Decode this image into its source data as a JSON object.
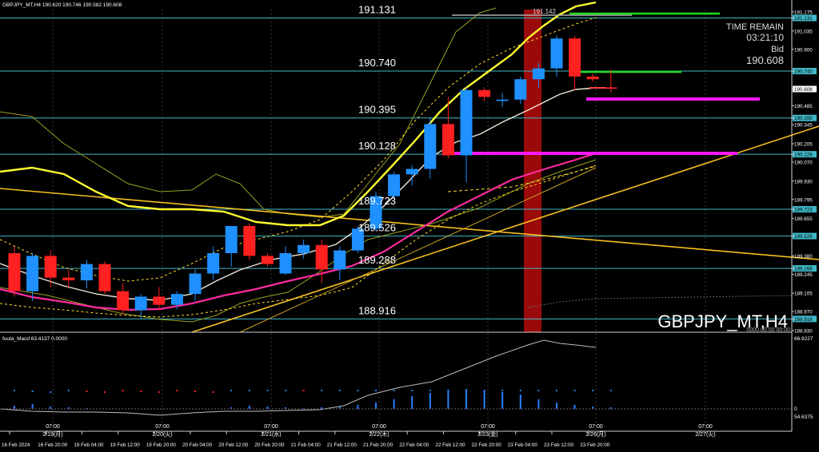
{
  "header": {
    "info": "GBPJPY_MT,H4  190.620 190.746 190.582 190.608"
  },
  "symbol_watermark": "GBPJPY_MT,H4",
  "time_panel": {
    "label": "TIME REMAIN",
    "remaining": "03:21:10",
    "bid_label": "Bid",
    "bid_value": "190.608"
  },
  "level_labels": [
    "191.131",
    "190.740",
    "190.395",
    "190.128",
    "189.723",
    "189.526",
    "189.288",
    "188.916"
  ],
  "top_line_label": "191.142",
  "price_axis": {
    "ticks": [
      "191.175",
      "191.131",
      "191.035",
      "190.900",
      "190.740",
      "190.608",
      "190.485",
      "190.395",
      "190.345",
      "190.205",
      "190.128",
      "190.070",
      "189.930",
      "189.795",
      "189.723",
      "189.655",
      "189.526",
      "189.380",
      "189.288",
      "189.245",
      "189.105",
      "188.970",
      "188.916",
      "188.830"
    ],
    "highlighted": [
      "191.131",
      "190.740",
      "190.395",
      "190.128",
      "189.723",
      "189.526",
      "189.288",
      "188.916"
    ],
    "current": "190.608"
  },
  "indicator": {
    "label": "fuuta_Macd 63.4137  0.0000",
    "axis_top": "66.9227",
    "axis_zero": "0",
    "axis_bottom": "54.6375"
  },
  "date_markers": [
    {
      "time": "07:00",
      "date": "2/19(月)"
    },
    {
      "time": "07:00",
      "date": "2/20(火)"
    },
    {
      "time": "07:00",
      "date": "2/21(水)"
    },
    {
      "time": "07:00",
      "date": "2/22(木)"
    },
    {
      "time": "07:00",
      "date": "2/23(金)"
    },
    {
      "time": "07:00",
      "date": "2/26(月)"
    },
    {
      "time": "07:00",
      "date": "2/27(火)"
    }
  ],
  "time_axis": [
    "16 Feb 2024",
    "16 Feb 20:00",
    "19 Feb 04:00",
    "19 Feb 12:00",
    "19 Feb 20:00",
    "20 Feb 04:00",
    "20 Feb 12:00",
    "20 Feb 20:00",
    "21 Feb 04:00",
    "21 Feb 12:00",
    "21 Feb 20:00",
    "22 Feb 04:00",
    "22 Feb 12:00",
    "22 Feb 20:00",
    "23 Feb 04:00",
    "23 Feb 12:00",
    "23 Feb 20:00"
  ],
  "overlay_text": "0000.00.00 00:00",
  "colors": {
    "bull": "#1e90ff",
    "bear": "#ff2020",
    "level_line": "#3fb8c8",
    "ma_fast": "#ffff30",
    "ma_mid": "#ff2aa0",
    "ma_slow": "#f2e6d8",
    "trend": "#f5c020",
    "magenta_zone": "#ff18ff",
    "green_line": "#22dd22",
    "dark_red_zone": "#9b0a0a"
  },
  "chart_data": {
    "type": "candlestick",
    "timeframe": "H4",
    "candles": [
      {
        "o": 189.4,
        "h": 189.45,
        "l": 189.08,
        "c": 189.12
      },
      {
        "o": 189.12,
        "h": 189.4,
        "l": 189.05,
        "c": 189.38
      },
      {
        "o": 189.38,
        "h": 189.42,
        "l": 189.15,
        "c": 189.22
      },
      {
        "o": 189.22,
        "h": 189.28,
        "l": 189.14,
        "c": 189.2
      },
      {
        "o": 189.2,
        "h": 189.35,
        "l": 189.14,
        "c": 189.32
      },
      {
        "o": 189.32,
        "h": 189.34,
        "l": 189.1,
        "c": 189.12
      },
      {
        "o": 189.12,
        "h": 189.18,
        "l": 188.95,
        "c": 188.98
      },
      {
        "o": 188.98,
        "h": 189.1,
        "l": 188.92,
        "c": 189.08
      },
      {
        "o": 189.08,
        "h": 189.15,
        "l": 188.98,
        "c": 189.02
      },
      {
        "o": 189.02,
        "h": 189.12,
        "l": 188.99,
        "c": 189.1
      },
      {
        "o": 189.1,
        "h": 189.28,
        "l": 189.05,
        "c": 189.25
      },
      {
        "o": 189.25,
        "h": 189.45,
        "l": 189.2,
        "c": 189.4
      },
      {
        "o": 189.4,
        "h": 189.6,
        "l": 189.3,
        "c": 189.6
      },
      {
        "o": 189.6,
        "h": 189.62,
        "l": 189.35,
        "c": 189.38
      },
      {
        "o": 189.38,
        "h": 189.4,
        "l": 189.3,
        "c": 189.32
      },
      {
        "o": 189.25,
        "h": 189.45,
        "l": 189.24,
        "c": 189.4
      },
      {
        "o": 189.4,
        "h": 189.5,
        "l": 189.36,
        "c": 189.46
      },
      {
        "o": 189.46,
        "h": 189.5,
        "l": 189.18,
        "c": 189.28
      },
      {
        "o": 189.28,
        "h": 189.45,
        "l": 189.2,
        "c": 189.42
      },
      {
        "o": 189.42,
        "h": 189.6,
        "l": 189.4,
        "c": 189.58
      },
      {
        "o": 189.58,
        "h": 189.85,
        "l": 189.56,
        "c": 189.82
      },
      {
        "o": 189.82,
        "h": 190.0,
        "l": 189.8,
        "c": 189.98
      },
      {
        "o": 189.98,
        "h": 190.05,
        "l": 189.9,
        "c": 190.02
      },
      {
        "o": 190.02,
        "h": 190.4,
        "l": 189.95,
        "c": 190.35
      },
      {
        "o": 190.35,
        "h": 190.55,
        "l": 190.1,
        "c": 190.12
      },
      {
        "o": 190.12,
        "h": 190.62,
        "l": 189.92,
        "c": 190.6
      },
      {
        "o": 190.6,
        "h": 190.62,
        "l": 190.52,
        "c": 190.55
      },
      {
        "o": 190.52,
        "h": 190.58,
        "l": 190.48,
        "c": 190.53
      },
      {
        "o": 190.53,
        "h": 190.7,
        "l": 190.5,
        "c": 190.68
      },
      {
        "o": 190.68,
        "h": 190.8,
        "l": 190.62,
        "c": 190.76
      },
      {
        "o": 190.76,
        "h": 191.0,
        "l": 190.7,
        "c": 190.98
      },
      {
        "o": 190.98,
        "h": 191.0,
        "l": 190.6,
        "c": 190.7
      },
      {
        "o": 190.7,
        "h": 190.72,
        "l": 190.66,
        "c": 190.68
      },
      {
        "o": 190.62,
        "h": 190.75,
        "l": 190.58,
        "c": 190.61
      }
    ]
  }
}
